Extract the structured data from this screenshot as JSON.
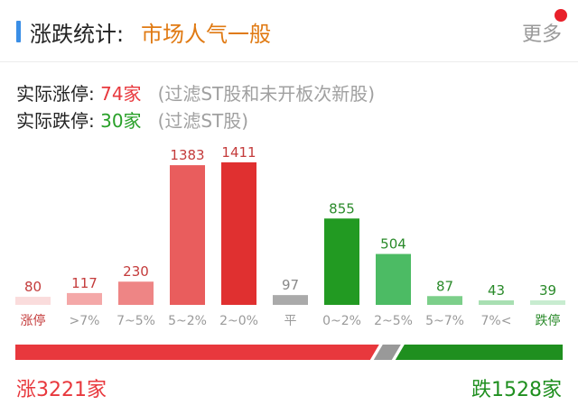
{
  "header": {
    "title": "涨跌统计",
    "colon": ":",
    "mood": "市场人气一般",
    "more_label": "更多"
  },
  "stats": {
    "up_label": "实际涨停: ",
    "up_value": "74家",
    "up_note": "(过滤ST股和未开板次新股)",
    "down_label": "实际跌停: ",
    "down_value": "30家",
    "down_note": "(过滤ST股)"
  },
  "chart_data": {
    "type": "bar",
    "categories": [
      "涨停",
      ">7%",
      "7~5%",
      "5~2%",
      "2~0%",
      "平",
      "0~2%",
      "2~5%",
      "5~7%",
      "7%<",
      "跌停"
    ],
    "values": [
      80,
      117,
      230,
      1383,
      1411,
      97,
      855,
      504,
      87,
      43,
      39
    ],
    "bar_colors": [
      "#fadcdc",
      "#f4a8a8",
      "#ee8585",
      "#e95d5d",
      "#e03030",
      "#aaaaaa",
      "#229a22",
      "#4cbb64",
      "#7ccf8a",
      "#a8dfb2",
      "#c8ecd0"
    ],
    "label_colors": [
      "#c43b3b",
      "#c43b3b",
      "#c43b3b",
      "#c43b3b",
      "#c43b3b",
      "#888888",
      "#2a8a2a",
      "#2a8a2a",
      "#2a8a2a",
      "#2a8a2a",
      "#2a8a2a"
    ],
    "category_colors": [
      "#c43b3b",
      "#9a9a9a",
      "#9a9a9a",
      "#9a9a9a",
      "#9a9a9a",
      "#9a9a9a",
      "#9a9a9a",
      "#9a9a9a",
      "#9a9a9a",
      "#9a9a9a",
      "#2a8a2a"
    ],
    "ylim": [
      0,
      1411
    ],
    "xlabel": "",
    "ylabel": ""
  },
  "summary": {
    "up_total": 3221,
    "down_total": 1528,
    "flat_total": 97,
    "up_text": "涨3221家",
    "down_text": "跌1528家",
    "up_color": "#e8383d",
    "down_color": "#1f8f1f",
    "flat_color": "#999999"
  }
}
